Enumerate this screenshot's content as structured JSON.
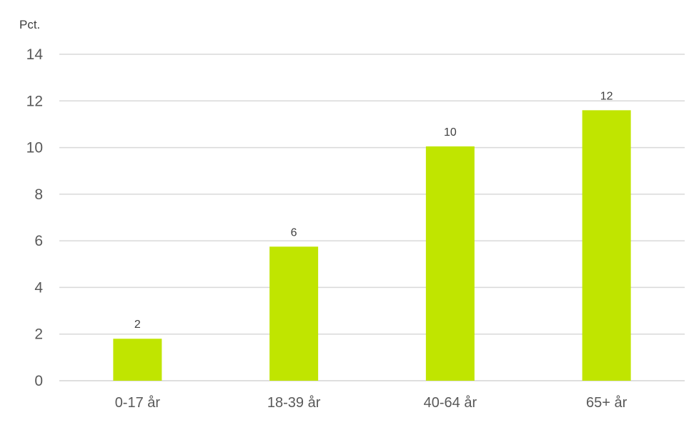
{
  "chart_data": {
    "type": "bar",
    "ylabel": "Pct.",
    "categories": [
      "0-17 år",
      "18-39 år",
      "40-64 år",
      "65+ år"
    ],
    "values": [
      1.8,
      5.75,
      10.05,
      11.6
    ],
    "data_labels": [
      "2",
      "6",
      "10",
      "12"
    ],
    "ylim": [
      0,
      14
    ],
    "yticks": [
      "0",
      "2",
      "4",
      "6",
      "8",
      "10",
      "12",
      "14"
    ],
    "grid": true,
    "bar_color": "#c0e500",
    "gridline_color": "#d9d9d9"
  }
}
